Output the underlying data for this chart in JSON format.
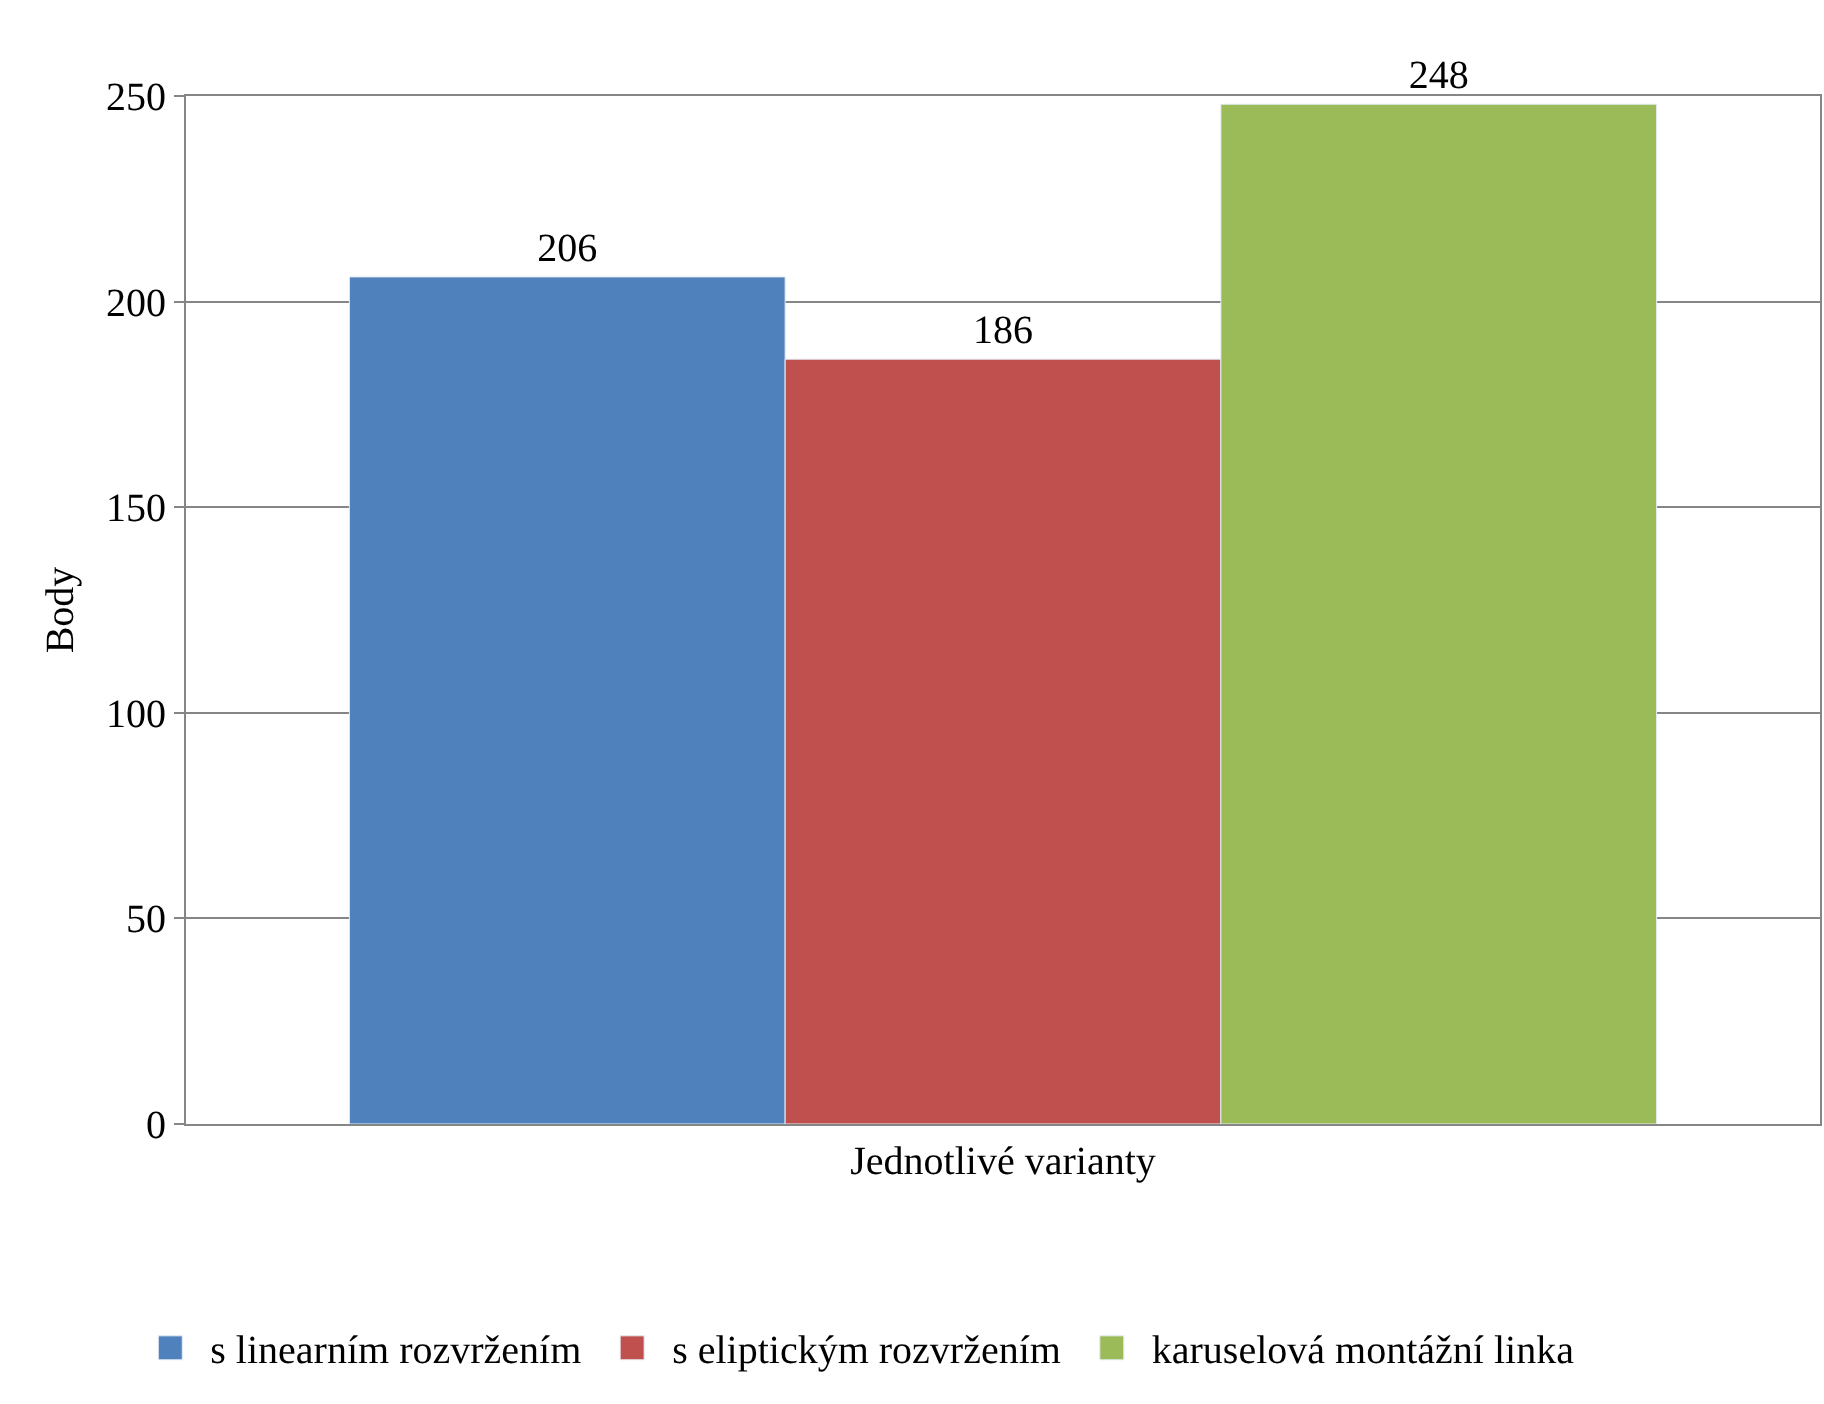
{
  "chart_data": {
    "type": "bar",
    "ylabel": "Body",
    "categories": [
      "Jednotlivé varianty"
    ],
    "series": [
      {
        "name": "s linearním rozvržením",
        "color": "#4f81bd",
        "values": [
          206
        ]
      },
      {
        "name": "s eliptickým rozvržením",
        "color": "#c0504d",
        "values": [
          186
        ]
      },
      {
        "name": "karuselová montážní linka",
        "color": "#9bbb59",
        "values": [
          248
        ]
      }
    ],
    "ylim": [
      0,
      250
    ],
    "yticks": [
      0,
      50,
      100,
      150,
      200,
      250
    ],
    "grid": "y",
    "legend": "bottom",
    "data_labels": true
  }
}
